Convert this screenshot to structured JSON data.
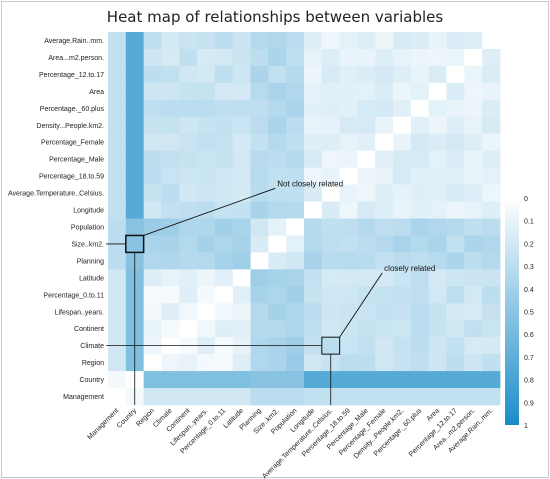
{
  "chart_data": {
    "type": "heatmap",
    "title": "Heat map of relationships between variables",
    "row_labels": [
      "Average.Rain..mm.",
      "Area...m2.person.",
      "Percentage_12.to.17",
      "Area",
      "Percentage._60.plus",
      "Density...People.km2.",
      "Percentage_Female",
      "Percentage_Male",
      "Percentage_18.to.59",
      "Average.Temperature..Celsius.",
      "Longitude",
      "Population",
      "Size..km2.",
      "Planning",
      "Latitude",
      "Percentage_0.to.11",
      "Lifespan..years.",
      "Continent",
      "Climate",
      "Region",
      "Country",
      "Management"
    ],
    "column_labels": [
      "Management",
      "Country",
      "Region",
      "Climate",
      "Continent",
      "Lifespan..years.",
      "Percentage_0.to.11",
      "Latitude",
      "Planning",
      "Size..km2.",
      "Population",
      "Longitude",
      "Average.Temperature..Celsius.",
      "Percentage_18.to.59",
      "Percentage_Male",
      "Percentage_Female",
      "Density...People.km2.",
      "Percentage._60.plus",
      "Area",
      "Percentage_12.to.17",
      "Area...m2.person.",
      "Average.Rain..mm."
    ],
    "colorbar": {
      "ticks": [
        "0",
        "0.1",
        "0.2",
        "0.3",
        "0.4",
        "0.5",
        "0.6",
        "0.7",
        "0.8",
        "0.9",
        "1"
      ],
      "min": 0,
      "max": 1,
      "color_low": "#ffffff",
      "color_high": "#1a8cc8"
    },
    "annotations": [
      {
        "text": "Not closely related",
        "row": "Size..km2.",
        "column": "Country"
      },
      {
        "text": "closely related",
        "row": "Climate",
        "column": "Average.Temperature..Celsius."
      }
    ]
  }
}
